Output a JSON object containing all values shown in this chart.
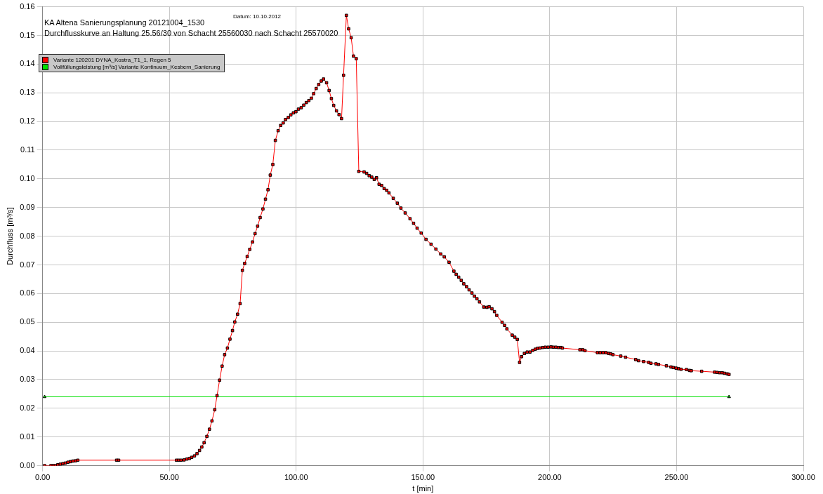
{
  "chart_data": {
    "type": "line",
    "title": "KA Altena Sanierungsplanung 20121004_1530",
    "subtitle": "Durchflusskurve an Haltung 25.56/30 von Schacht 25560030 nach Schacht 25570020",
    "xlabel": "t [min]",
    "ylabel": "Durchfluss [m³/s]",
    "annotations": [
      "Datum: 10.10.2012"
    ],
    "xlim": [
      0,
      300
    ],
    "xticks": [
      {
        "value": 0,
        "label": "0.00"
      },
      {
        "value": 50,
        "label": "50.00"
      },
      {
        "value": 100,
        "label": "100.00"
      },
      {
        "value": 150,
        "label": "150.00"
      },
      {
        "value": 200,
        "label": "200.00"
      },
      {
        "value": 250,
        "label": "250.00"
      },
      {
        "value": 300,
        "label": "300.00"
      }
    ],
    "ylim": [
      0,
      0.16
    ],
    "yticks": [
      {
        "value": 0,
        "label": "0.00"
      },
      {
        "value": 0.01,
        "label": "0.01"
      },
      {
        "value": 0.02,
        "label": "0.02"
      },
      {
        "value": 0.03,
        "label": "0.03"
      },
      {
        "value": 0.04,
        "label": "0.04"
      },
      {
        "value": 0.05,
        "label": "0.05"
      },
      {
        "value": 0.06,
        "label": "0.06"
      },
      {
        "value": 0.07,
        "label": "0.07"
      },
      {
        "value": 0.08,
        "label": "0.08"
      },
      {
        "value": 0.09,
        "label": "0.09"
      },
      {
        "value": 0.1,
        "label": "0.10"
      },
      {
        "value": 0.11,
        "label": "0.11"
      },
      {
        "value": 0.12,
        "label": "0.12"
      },
      {
        "value": 0.13,
        "label": "0.13"
      },
      {
        "value": 0.14,
        "label": "0.14"
      },
      {
        "value": 0.15,
        "label": "0.15"
      },
      {
        "value": 0.16,
        "label": "0.16"
      }
    ],
    "grid": true,
    "legend": "top left",
    "line_style": "solid",
    "series": [
      {
        "name": "Variante 120201 DYNA_Kostra_T1_1, Regen 5",
        "color": "#ff0000",
        "marker": "square",
        "x": [
          0.8,
          3.3,
          4.2,
          5,
          6,
          7,
          8,
          9,
          10,
          11,
          12,
          13,
          13.9,
          29.2,
          30,
          52.8,
          53.7,
          54.6,
          55.8,
          56.9,
          57.9,
          58.8,
          59.9,
          60.9,
          61.9,
          62.8,
          63.7,
          64.8,
          65.8,
          66.8,
          67.9,
          68.8,
          69.8,
          70.8,
          71.8,
          72.9,
          73.9,
          74.9,
          75.8,
          76.9,
          77.9,
          78.8,
          79.7,
          80.7,
          81.7,
          82.8,
          83.8,
          84.8,
          85.8,
          86.9,
          87.9,
          88.9,
          89.8,
          90.8,
          91.8,
          92.9,
          93.9,
          94.9,
          95.8,
          96.9,
          97.9,
          98.9,
          99.9,
          100.9,
          102,
          103,
          104,
          105,
          106,
          106.9,
          107.9,
          108.9,
          109.9,
          110.8,
          112,
          113,
          113.9,
          114.8,
          115.9,
          116.9,
          117.9,
          118.7,
          119.8,
          120.7,
          121.7,
          122.6,
          123.7,
          124.7,
          126.8,
          127.8,
          128.8,
          129.8,
          130.8,
          131.7,
          132.7,
          133.7,
          134.7,
          135.7,
          136.6,
          138.3,
          139.9,
          141.3,
          143,
          144.9,
          146.3,
          147.7,
          149.3,
          151.2,
          153.2,
          155.1,
          157,
          158.4,
          160.3,
          162.2,
          163.1,
          164.1,
          165.1,
          166.1,
          167.2,
          168.2,
          169.3,
          170.3,
          171.3,
          172.3,
          174,
          175.2,
          176.1,
          177.2,
          178.2,
          179.1,
          181.2,
          182.2,
          183.1,
          185.2,
          186.2,
          187.2,
          188.1,
          188.9,
          190,
          191.1,
          192.2,
          193.3,
          194.3,
          195.2,
          196.1,
          197.2,
          198.3,
          199.4,
          200.5,
          201.4,
          202.4,
          203.4,
          204.4,
          205,
          211.9,
          213,
          213.9,
          218.8,
          219.9,
          221,
          222.1,
          223.2,
          224,
          224.9,
          228,
          229.9,
          233.9,
          235,
          237,
          239,
          239.9,
          241.9,
          242.9,
          246,
          247.8,
          248.7,
          249.8,
          250.8,
          251.8,
          253.9,
          255.1,
          255.8,
          259.9,
          265,
          266,
          267,
          268,
          268.9,
          270,
          270.7
        ],
        "values": [
          0,
          0,
          0,
          0,
          0.0003,
          0.0005,
          0.0007,
          0.0009,
          0.0012,
          0.0014,
          0.0016,
          0.0017,
          0.0019,
          0.0019,
          0.0019,
          0.0019,
          0.0019,
          0.0019,
          0.002,
          0.0023,
          0.0025,
          0.0029,
          0.0034,
          0.0042,
          0.0053,
          0.0065,
          0.008,
          0.0102,
          0.0127,
          0.0156,
          0.0195,
          0.0244,
          0.0298,
          0.0347,
          0.0387,
          0.041,
          0.0441,
          0.0471,
          0.0501,
          0.0528,
          0.0565,
          0.0681,
          0.0705,
          0.0729,
          0.0754,
          0.078,
          0.0809,
          0.0835,
          0.0865,
          0.0895,
          0.0929,
          0.0962,
          0.1013,
          0.105,
          0.1134,
          0.1168,
          0.1186,
          0.1195,
          0.1207,
          0.1214,
          0.1223,
          0.123,
          0.1234,
          0.1243,
          0.1248,
          0.1257,
          0.1266,
          0.1273,
          0.1281,
          0.1297,
          0.1315,
          0.1329,
          0.1341,
          0.1348,
          0.1335,
          0.1308,
          0.128,
          0.1256,
          0.1237,
          0.1224,
          0.121,
          0.1361,
          0.157,
          0.1523,
          0.1492,
          0.1428,
          0.1419,
          0.1026,
          0.1024,
          0.1019,
          0.1011,
          0.1006,
          0.0998,
          0.1004,
          0.0981,
          0.0977,
          0.0966,
          0.096,
          0.0951,
          0.0932,
          0.0915,
          0.0898,
          0.0881,
          0.0861,
          0.0845,
          0.0828,
          0.0811,
          0.0789,
          0.0772,
          0.0755,
          0.0738,
          0.0728,
          0.0709,
          0.0678,
          0.0667,
          0.0657,
          0.0646,
          0.0634,
          0.0624,
          0.0613,
          0.0602,
          0.0591,
          0.0582,
          0.0571,
          0.0553,
          0.0552,
          0.0554,
          0.0547,
          0.0537,
          0.0524,
          0.05,
          0.0489,
          0.0477,
          0.0455,
          0.0448,
          0.044,
          0.036,
          0.038,
          0.0391,
          0.0396,
          0.0396,
          0.0402,
          0.0406,
          0.0409,
          0.041,
          0.0412,
          0.0413,
          0.0413,
          0.0414,
          0.0413,
          0.0413,
          0.0412,
          0.0412,
          0.041,
          0.0404,
          0.0404,
          0.0401,
          0.0394,
          0.0394,
          0.0394,
          0.0394,
          0.0391,
          0.039,
          0.0387,
          0.0382,
          0.0378,
          0.037,
          0.0366,
          0.0363,
          0.036,
          0.0357,
          0.0355,
          0.0353,
          0.0348,
          0.0344,
          0.0342,
          0.034,
          0.0338,
          0.0336,
          0.0335,
          0.0332,
          0.0331,
          0.0329,
          0.0326,
          0.0325,
          0.0324,
          0.0324,
          0.0322,
          0.032,
          0.0318
        ]
      },
      {
        "name": "Vollfüllungsleistung [m³/s]  Variante Kontinuum_Kesbern_Sanierung",
        "color": "#00e000",
        "marker": "triangle",
        "x": [
          0.8,
          270.7
        ],
        "values": [
          0.024,
          0.024
        ]
      }
    ]
  }
}
